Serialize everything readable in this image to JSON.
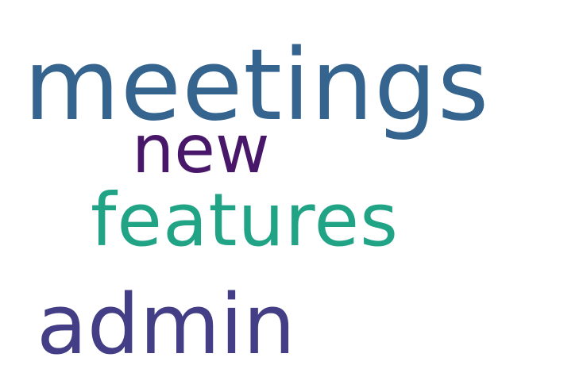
{
  "word_cloud": {
    "background": "#ffffff",
    "words": [
      {
        "text": "meetings",
        "color": "#35648f"
      },
      {
        "text": "new",
        "color": "#481769"
      },
      {
        "text": "features",
        "color": "#21a386"
      },
      {
        "text": "admin",
        "color": "#433e85"
      }
    ]
  }
}
